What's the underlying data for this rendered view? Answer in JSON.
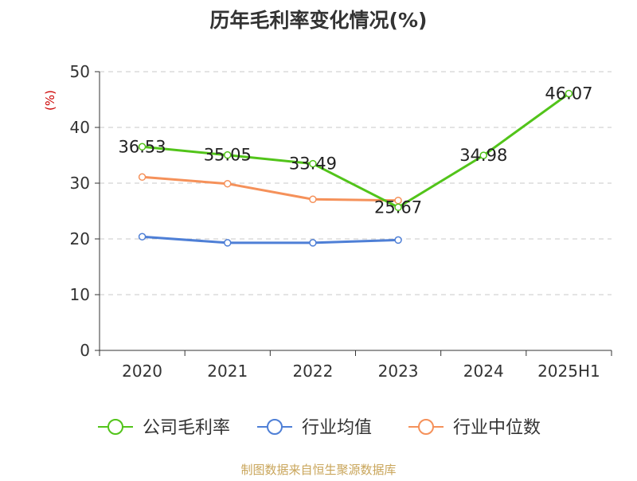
{
  "chart_data": {
    "type": "line",
    "title": "历年毛利率变化情况(%)",
    "ylabel": "(%)",
    "xlabel": "",
    "categories": [
      "2020",
      "2021",
      "2022",
      "2023",
      "2024",
      "2025H1"
    ],
    "ylim": [
      0,
      50
    ],
    "yticks": [
      0,
      10,
      20,
      30,
      40,
      50
    ],
    "grid": true,
    "legend_position": "bottom",
    "series": [
      {
        "name": "公司毛利率",
        "color": "#52c41a",
        "values": [
          36.53,
          35.05,
          33.49,
          25.67,
          34.98,
          46.07
        ],
        "labels": [
          "36.53",
          "35.05",
          "33.49",
          "25.67",
          "34.98",
          "46.07"
        ]
      },
      {
        "name": "行业均值",
        "color": "#4e7fd6",
        "values": [
          20.4,
          19.3,
          19.3,
          19.8,
          null,
          null
        ]
      },
      {
        "name": "行业中位数",
        "color": "#f5915a",
        "values": [
          31.1,
          29.9,
          27.1,
          26.9,
          null,
          null
        ]
      }
    ]
  },
  "footer": {
    "source": "制图数据来自恒生聚源数据库",
    "source_color": "#c9a55a"
  }
}
